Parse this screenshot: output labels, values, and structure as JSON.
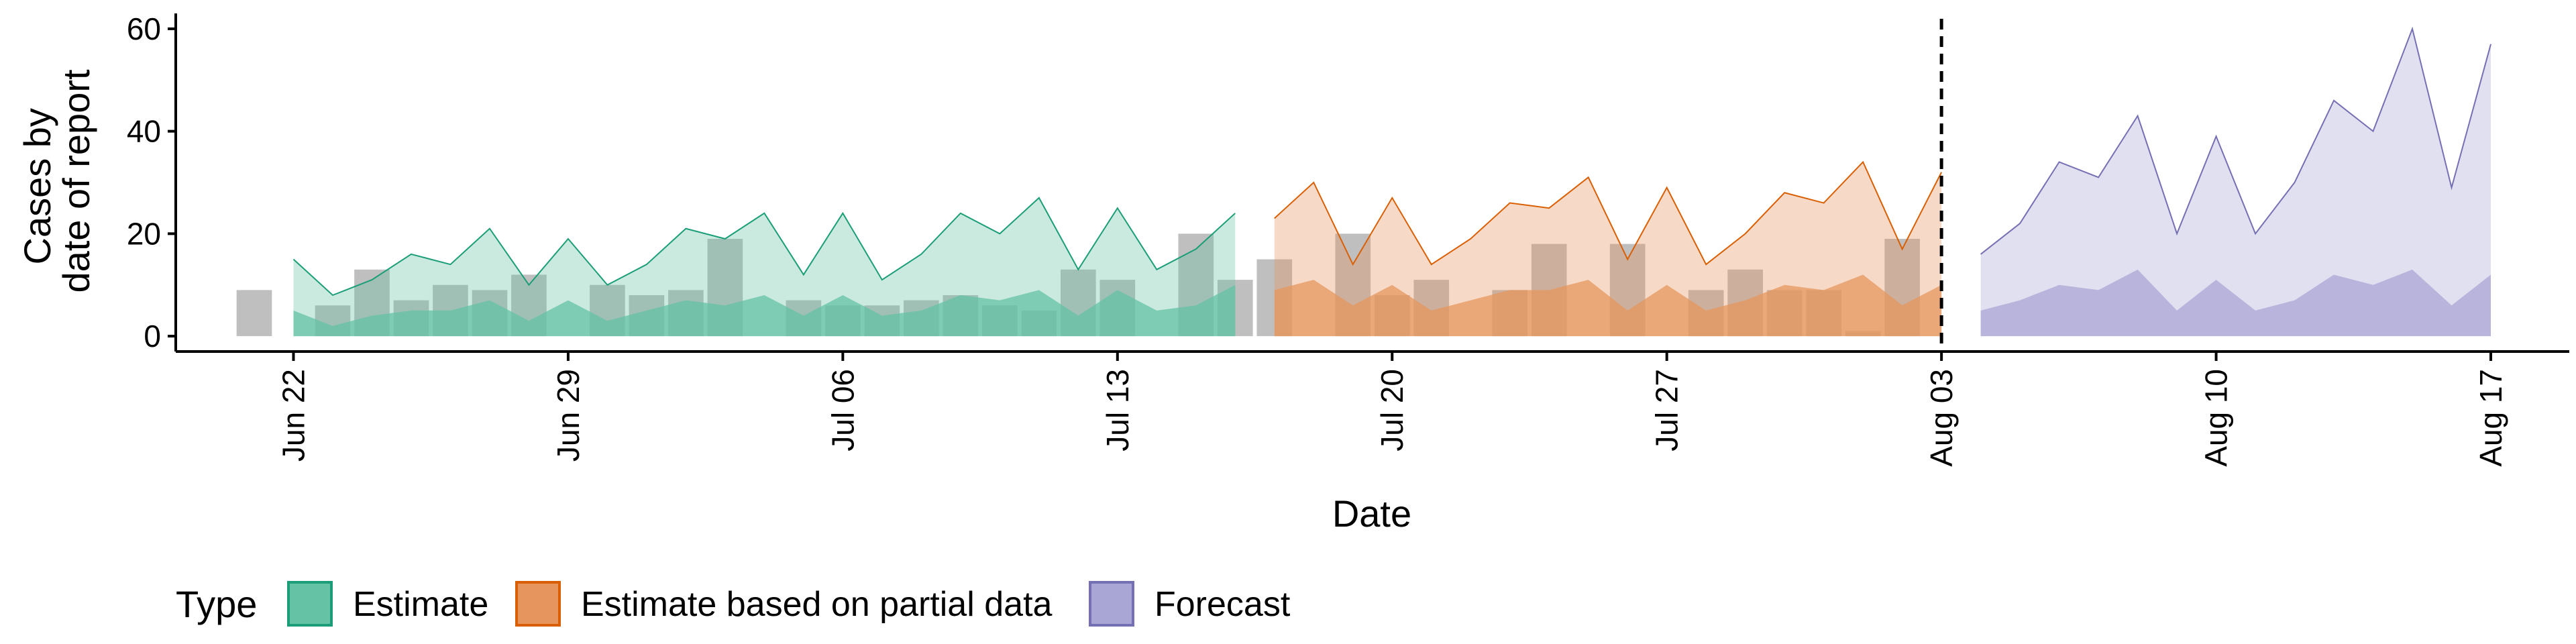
{
  "chart_data": {
    "type": "area",
    "xlabel": "Date",
    "ylabel_lines": [
      "Cases by",
      "date of report"
    ],
    "ylim": [
      -3,
      63
    ],
    "xlim": [
      "2020-06-19",
      "2020-08-19"
    ],
    "y_ticks": [
      0,
      20,
      40,
      60
    ],
    "x_ticks": [
      {
        "date": "2020-06-22",
        "label": "Jun 22"
      },
      {
        "date": "2020-06-29",
        "label": "Jun 29"
      },
      {
        "date": "2020-07-06",
        "label": "Jul 06"
      },
      {
        "date": "2020-07-13",
        "label": "Jul 13"
      },
      {
        "date": "2020-07-20",
        "label": "Jul 20"
      },
      {
        "date": "2020-07-27",
        "label": "Jul 27"
      },
      {
        "date": "2020-08-03",
        "label": "Aug 03"
      },
      {
        "date": "2020-08-10",
        "label": "Aug 10"
      },
      {
        "date": "2020-08-17",
        "label": "Aug 17"
      }
    ],
    "vline_date": "2020-08-03",
    "grid": false,
    "legend": {
      "title": "Type",
      "position": "bottom",
      "entries": [
        {
          "label": "Estimate",
          "fill": "#66c2a5",
          "stroke": "#1b9e77"
        },
        {
          "label": "Estimate based on partial data",
          "fill": "#e6955e",
          "stroke": "#d95f02"
        },
        {
          "label": "Forecast",
          "fill": "#a9a5d4",
          "stroke": "#7570b3"
        }
      ]
    },
    "series": [
      {
        "type_index": 0,
        "start_date": "2020-06-22",
        "upper": [
          15,
          8,
          11,
          16,
          14,
          21,
          10,
          19,
          10,
          14,
          21,
          19,
          24,
          12,
          24,
          11,
          16,
          24,
          20,
          27,
          13,
          25,
          13,
          17,
          24
        ],
        "lower": [
          5,
          2,
          4,
          5,
          5,
          7,
          3,
          7,
          3,
          5,
          7,
          6,
          8,
          4,
          8,
          4,
          5,
          8,
          7,
          9,
          4,
          9,
          5,
          6,
          10
        ]
      },
      {
        "type_index": 1,
        "start_date": "2020-07-17",
        "upper": [
          23,
          30,
          14,
          27,
          14,
          19,
          26,
          25,
          31,
          15,
          29,
          14,
          20,
          28,
          26,
          34,
          17,
          32
        ],
        "lower": [
          9,
          11,
          6,
          10,
          5,
          7,
          9,
          9,
          11,
          5,
          10,
          5,
          7,
          10,
          9,
          12,
          6,
          10
        ]
      },
      {
        "type_index": 2,
        "start_date": "2020-08-04",
        "upper": [
          16,
          22,
          34,
          31,
          43,
          20,
          39,
          20,
          30,
          46,
          40,
          60,
          29,
          57
        ],
        "lower": [
          5,
          7,
          10,
          9,
          13,
          5,
          11,
          5,
          7,
          12,
          10,
          13,
          6,
          12
        ]
      }
    ],
    "reported_cases": {
      "start_date": "2020-06-21",
      "color": "#aaaaaa",
      "values": [
        9,
        0,
        6,
        13,
        7,
        10,
        9,
        12,
        0,
        10,
        8,
        9,
        19,
        0,
        7,
        6,
        6,
        7,
        8,
        6,
        5,
        13,
        11,
        0,
        20,
        11,
        15,
        0,
        20,
        8,
        11,
        0,
        9,
        18,
        0,
        18,
        0,
        9,
        13,
        9,
        9,
        1,
        19
      ]
    }
  }
}
